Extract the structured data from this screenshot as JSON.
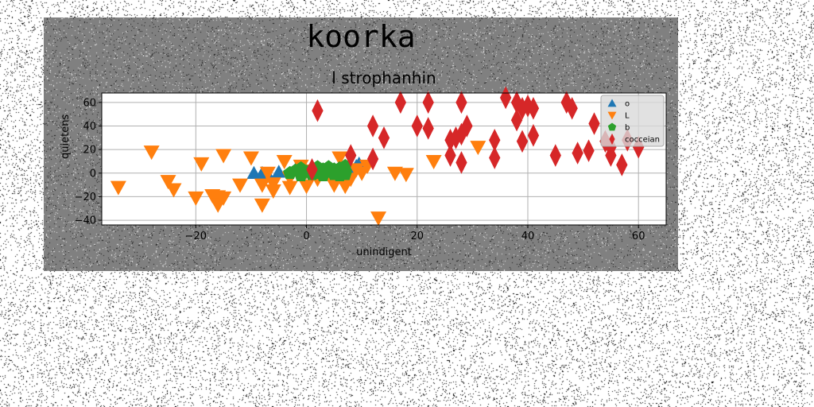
{
  "figure": {
    "suptitle": "koorka",
    "background": "#808080"
  },
  "chart_data": {
    "type": "scatter",
    "title": "l strophanhin",
    "xlabel": "unindigent",
    "ylabel": "quietens",
    "xlim": [
      -37,
      65
    ],
    "ylim": [
      -44,
      68
    ],
    "xticks": [
      -20,
      0,
      20,
      40,
      60
    ],
    "yticks": [
      -40,
      -20,
      0,
      20,
      40,
      60
    ],
    "grid": true,
    "legend_position": "top-right",
    "series": [
      {
        "name": "o",
        "marker": "triangle-up",
        "color": "#1f77b4",
        "points": [
          [
            -9.5,
            0
          ],
          [
            -8,
            0
          ],
          [
            -7,
            -1
          ],
          [
            -5,
            1
          ],
          [
            -2,
            3
          ],
          [
            0,
            1
          ],
          [
            2,
            0
          ],
          [
            3,
            2
          ],
          [
            4,
            2
          ],
          [
            5,
            -1
          ],
          [
            6,
            1
          ],
          [
            7,
            3
          ],
          [
            8,
            4
          ],
          [
            9,
            6
          ],
          [
            9.5,
            8
          ]
        ]
      },
      {
        "name": "L",
        "marker": "triangle-down",
        "color": "#ff7f0e",
        "points": [
          [
            -34,
            -12
          ],
          [
            -28,
            18
          ],
          [
            -25,
            -7
          ],
          [
            -24,
            -14
          ],
          [
            -20,
            -21
          ],
          [
            -19,
            8
          ],
          [
            -17,
            -19
          ],
          [
            -16,
            -20
          ],
          [
            -16,
            -27
          ],
          [
            -15,
            -21
          ],
          [
            -15,
            15
          ],
          [
            -12,
            -10
          ],
          [
            -10,
            13
          ],
          [
            -8,
            -27
          ],
          [
            -8,
            -10
          ],
          [
            -7,
            0
          ],
          [
            -6,
            -15
          ],
          [
            -6,
            -9
          ],
          [
            -4,
            10
          ],
          [
            -3,
            -4
          ],
          [
            -3,
            -12
          ],
          [
            -1,
            6
          ],
          [
            0,
            2
          ],
          [
            0,
            -11
          ],
          [
            1,
            0
          ],
          [
            2,
            -5
          ],
          [
            4,
            1
          ],
          [
            5,
            -10
          ],
          [
            6,
            13
          ],
          [
            7,
            -11
          ],
          [
            8,
            -5
          ],
          [
            9,
            3
          ],
          [
            10,
            0
          ],
          [
            11,
            6
          ],
          [
            13,
            -38
          ],
          [
            16,
            0
          ],
          [
            18,
            -1
          ],
          [
            23,
            10
          ],
          [
            31,
            22
          ]
        ]
      },
      {
        "name": "b",
        "marker": "pentagon",
        "color": "#2ca02c",
        "points": [
          [
            -3,
            0
          ],
          [
            -2,
            2
          ],
          [
            -1,
            4
          ],
          [
            -1,
            -2
          ],
          [
            0,
            1
          ],
          [
            1,
            3
          ],
          [
            1,
            -1
          ],
          [
            2,
            5
          ],
          [
            2,
            0
          ],
          [
            3,
            -2
          ],
          [
            3,
            3
          ],
          [
            4,
            1
          ],
          [
            4,
            5
          ],
          [
            5,
            -1
          ],
          [
            5,
            3
          ],
          [
            6,
            2
          ],
          [
            6,
            4
          ],
          [
            6,
            -2
          ],
          [
            7,
            1
          ],
          [
            7,
            6
          ],
          [
            7,
            -1
          ]
        ]
      },
      {
        "name": "cocceian",
        "marker": "thin-diamond",
        "color": "#d62728",
        "points": [
          [
            1,
            3
          ],
          [
            2,
            53
          ],
          [
            8,
            15
          ],
          [
            12,
            12
          ],
          [
            12,
            40
          ],
          [
            14,
            30
          ],
          [
            17,
            60
          ],
          [
            20,
            40
          ],
          [
            22,
            60
          ],
          [
            22,
            38
          ],
          [
            26,
            28
          ],
          [
            26,
            15
          ],
          [
            27,
            30
          ],
          [
            28,
            60
          ],
          [
            28,
            9
          ],
          [
            28,
            33
          ],
          [
            29,
            40
          ],
          [
            34,
            13
          ],
          [
            34,
            28
          ],
          [
            36,
            64
          ],
          [
            38,
            45
          ],
          [
            38,
            60
          ],
          [
            39,
            55
          ],
          [
            39,
            27
          ],
          [
            40,
            57
          ],
          [
            41,
            32
          ],
          [
            41,
            55
          ],
          [
            45,
            15
          ],
          [
            47,
            60
          ],
          [
            48,
            55
          ],
          [
            49,
            17
          ],
          [
            51,
            19
          ],
          [
            52,
            42
          ],
          [
            54,
            27
          ],
          [
            55,
            22
          ],
          [
            55,
            15
          ],
          [
            57,
            7
          ],
          [
            58,
            28
          ],
          [
            60,
            22
          ]
        ]
      }
    ]
  }
}
